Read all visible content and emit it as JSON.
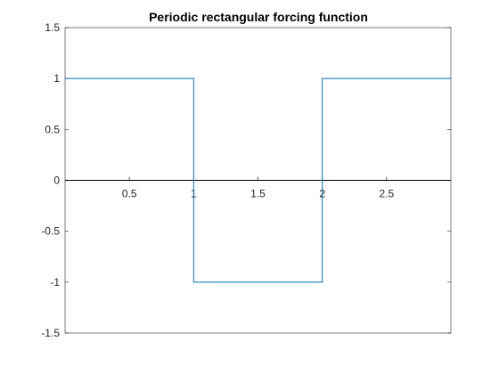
{
  "chart_data": {
    "type": "line",
    "title": "Periodic rectangular forcing function",
    "xlabel": "",
    "ylabel": "",
    "xlim": [
      0,
      3
    ],
    "ylim": [
      -1.5,
      1.5
    ],
    "x_ticks": [
      0.5,
      1,
      1.5,
      2,
      2.5
    ],
    "x_tick_labels": [
      "0.5",
      "1",
      "1.5",
      "2",
      "2.5"
    ],
    "y_ticks": [
      -1.5,
      -1,
      -0.5,
      0,
      0.5,
      1,
      1.5
    ],
    "y_tick_labels": [
      "-1.5",
      "-1",
      "-0.5",
      "0",
      "0.5",
      "1",
      "1.5"
    ],
    "grid": false,
    "x_axis_at_zero": true,
    "series": [
      {
        "color": "#0072BD",
        "x": [
          0,
          1,
          1,
          2,
          2,
          3
        ],
        "y": [
          1,
          1,
          -1,
          -1,
          1,
          1
        ]
      }
    ]
  },
  "colors": {
    "axes_box": "#262626",
    "zero_axis": "#000000",
    "series": "#0072BD"
  }
}
